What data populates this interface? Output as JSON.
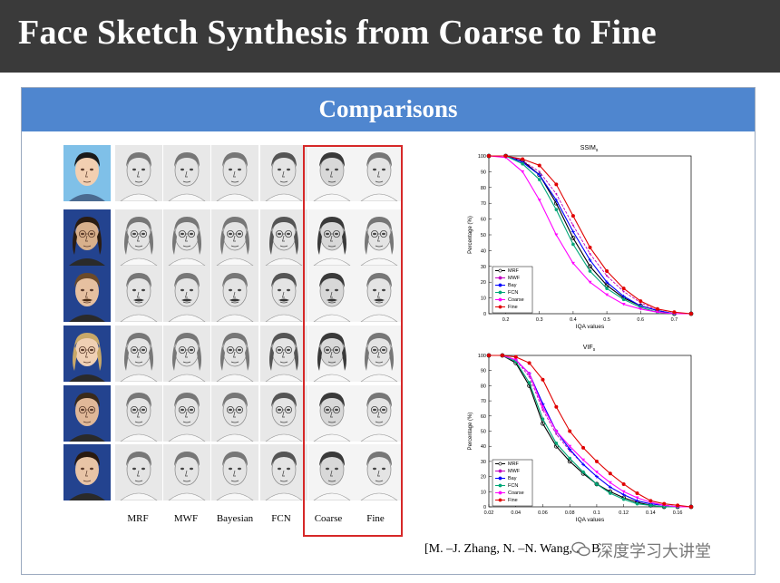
{
  "title": "Face Sketch Synthesis from Coarse to Fine",
  "panel": {
    "title": "Comparisons"
  },
  "methods": [
    "MRF",
    "MWF",
    "Bayesian",
    "FCN",
    "Coarse",
    "Fine"
  ],
  "citation": "[M. –J. Zhang, N. –N. Wang, … B",
  "watermark": "深度学习大讲堂",
  "faces": {
    "rows": 6,
    "columns": 7,
    "first_column": "photo",
    "highlighted_columns": [
      "Coarse",
      "Fine"
    ]
  },
  "colors": {
    "title_bg": "#3a3a3a",
    "panel_header": "#4f86cf",
    "highlight": "#d62828",
    "MRF": "#000000",
    "MWF": "#c000c0",
    "Bay": "#0000ff",
    "FCN": "#00a878",
    "Coarse": "#ff00ff",
    "Fine": "#e00000"
  },
  "chart_data": [
    {
      "type": "line",
      "title": "SSIM",
      "title_subscript": "s",
      "xlabel": "IQA values",
      "ylabel": "Percentage (%)",
      "xlim": [
        0.15,
        0.75
      ],
      "ylim": [
        0,
        100
      ],
      "xticks": [
        "0.2",
        "0.3",
        "0.4",
        "0.5",
        "0.6",
        "0.7"
      ],
      "yticks": [
        "0",
        "10",
        "20",
        "30",
        "40",
        "50",
        "60",
        "70",
        "80",
        "90",
        "100"
      ],
      "legend": "bottom-left",
      "series": [
        {
          "name": "MRF",
          "x": [
            0.15,
            0.2,
            0.25,
            0.3,
            0.35,
            0.4,
            0.45,
            0.5,
            0.55,
            0.6,
            0.65,
            0.7,
            0.75
          ],
          "values": [
            100,
            100,
            97,
            88,
            70,
            48,
            30,
            18,
            10,
            5,
            2,
            0,
            0
          ]
        },
        {
          "name": "MWF",
          "x": [
            0.15,
            0.2,
            0.25,
            0.3,
            0.35,
            0.4,
            0.45,
            0.5,
            0.55,
            0.6,
            0.65,
            0.7,
            0.75
          ],
          "values": [
            100,
            100,
            97,
            90,
            76,
            56,
            38,
            24,
            14,
            7,
            2,
            0,
            0
          ]
        },
        {
          "name": "Bay",
          "x": [
            0.15,
            0.2,
            0.25,
            0.3,
            0.35,
            0.4,
            0.45,
            0.5,
            0.55,
            0.6,
            0.65,
            0.7,
            0.75
          ],
          "values": [
            100,
            100,
            96,
            88,
            72,
            52,
            34,
            20,
            11,
            5,
            2,
            0,
            0
          ]
        },
        {
          "name": "FCN",
          "x": [
            0.15,
            0.2,
            0.25,
            0.3,
            0.35,
            0.4,
            0.45,
            0.5,
            0.55,
            0.6,
            0.65,
            0.7,
            0.75
          ],
          "values": [
            100,
            100,
            95,
            85,
            66,
            44,
            27,
            16,
            9,
            4,
            1,
            0,
            0
          ]
        },
        {
          "name": "Coarse",
          "x": [
            0.15,
            0.2,
            0.25,
            0.3,
            0.35,
            0.4,
            0.45,
            0.5,
            0.55,
            0.6,
            0.65,
            0.7,
            0.75
          ],
          "values": [
            100,
            99,
            90,
            72,
            50,
            32,
            20,
            12,
            6,
            3,
            1,
            0,
            0
          ]
        },
        {
          "name": "Fine",
          "x": [
            0.15,
            0.2,
            0.25,
            0.3,
            0.35,
            0.4,
            0.45,
            0.5,
            0.55,
            0.6,
            0.65,
            0.7,
            0.75
          ],
          "values": [
            100,
            100,
            98,
            94,
            82,
            62,
            42,
            27,
            16,
            8,
            3,
            1,
            0
          ]
        }
      ]
    },
    {
      "type": "line",
      "title": "VIF",
      "title_subscript": "s",
      "xlabel": "IQA values",
      "ylabel": "Percentage (%)",
      "xlim": [
        0.02,
        0.17
      ],
      "ylim": [
        0,
        100
      ],
      "xticks": [
        "0.02",
        "0.04",
        "0.06",
        "0.08",
        "0.1",
        "0.12",
        "0.14",
        "0.16"
      ],
      "yticks": [
        "0",
        "10",
        "20",
        "30",
        "40",
        "50",
        "60",
        "70",
        "80",
        "90",
        "100"
      ],
      "legend": "bottom-left",
      "series": [
        {
          "name": "MRF",
          "x": [
            0.02,
            0.03,
            0.04,
            0.05,
            0.06,
            0.07,
            0.08,
            0.09,
            0.1,
            0.11,
            0.12,
            0.13,
            0.14,
            0.15,
            0.16,
            0.17
          ],
          "values": [
            100,
            100,
            95,
            80,
            55,
            40,
            30,
            22,
            15,
            10,
            6,
            3,
            1,
            0,
            0,
            0
          ]
        },
        {
          "name": "MWF",
          "x": [
            0.02,
            0.03,
            0.04,
            0.05,
            0.06,
            0.07,
            0.08,
            0.09,
            0.1,
            0.11,
            0.12,
            0.13,
            0.14,
            0.15,
            0.16,
            0.17
          ],
          "values": [
            100,
            100,
            97,
            86,
            64,
            48,
            37,
            28,
            20,
            13,
            8,
            4,
            2,
            1,
            0,
            0
          ]
        },
        {
          "name": "Bay",
          "x": [
            0.02,
            0.03,
            0.04,
            0.05,
            0.06,
            0.07,
            0.08,
            0.09,
            0.1,
            0.11,
            0.12,
            0.13,
            0.14,
            0.15,
            0.16,
            0.17
          ],
          "values": [
            100,
            100,
            97,
            88,
            68,
            50,
            38,
            28,
            20,
            13,
            8,
            4,
            2,
            1,
            0,
            0
          ]
        },
        {
          "name": "FCN",
          "x": [
            0.02,
            0.03,
            0.04,
            0.05,
            0.06,
            0.07,
            0.08,
            0.09,
            0.1,
            0.11,
            0.12,
            0.13,
            0.14,
            0.15,
            0.16,
            0.17
          ],
          "values": [
            100,
            100,
            96,
            82,
            58,
            42,
            32,
            23,
            15,
            9,
            5,
            2,
            1,
            0,
            0,
            0
          ]
        },
        {
          "name": "Coarse",
          "x": [
            0.02,
            0.03,
            0.04,
            0.05,
            0.06,
            0.07,
            0.08,
            0.09,
            0.1,
            0.11,
            0.12,
            0.13,
            0.14,
            0.15,
            0.16,
            0.17
          ],
          "values": [
            100,
            100,
            97,
            88,
            66,
            50,
            40,
            31,
            23,
            16,
            10,
            6,
            3,
            1,
            0,
            0
          ]
        },
        {
          "name": "Fine",
          "x": [
            0.02,
            0.03,
            0.04,
            0.05,
            0.06,
            0.07,
            0.08,
            0.09,
            0.1,
            0.11,
            0.12,
            0.13,
            0.14,
            0.15,
            0.16,
            0.17
          ],
          "values": [
            100,
            100,
            99,
            95,
            84,
            66,
            50,
            39,
            30,
            22,
            15,
            9,
            4,
            2,
            1,
            0
          ]
        }
      ]
    }
  ]
}
